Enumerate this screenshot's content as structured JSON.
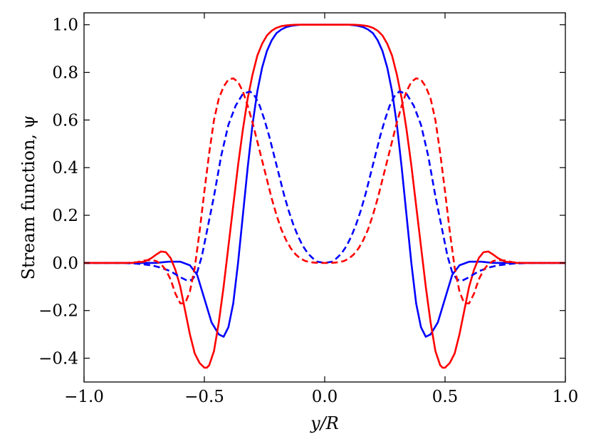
{
  "chart_data": {
    "type": "line",
    "xlabel": "y/R",
    "ylabel": "Stream function, ψ",
    "xlim": [
      -1.0,
      1.0
    ],
    "ylim": [
      -0.5,
      1.05
    ],
    "xticks": [
      "−1.0",
      "−0.5",
      "0.0",
      "0.5",
      "1.0"
    ],
    "xtick_values": [
      -1.0,
      -0.5,
      0.0,
      0.5,
      1.0
    ],
    "yticks": [
      "−0.4",
      "−0.2",
      "0.0",
      "0.2",
      "0.4",
      "0.6",
      "0.8",
      "1.0"
    ],
    "ytick_values": [
      -0.4,
      -0.2,
      0.0,
      0.2,
      0.4,
      0.6,
      0.8,
      1.0
    ],
    "grid": false,
    "series": [
      {
        "color": "#0000ff",
        "style": "solid",
        "x": [
          -1.0,
          -0.8,
          -0.7,
          -0.65,
          -0.6,
          -0.56,
          -0.53,
          -0.5,
          -0.47,
          -0.44,
          -0.42,
          -0.4,
          -0.38,
          -0.36,
          -0.34,
          -0.32,
          -0.3,
          -0.28,
          -0.26,
          -0.24,
          -0.22,
          -0.2,
          -0.18,
          -0.16,
          -0.14,
          -0.12,
          -0.1,
          -0.07,
          0.0,
          0.07,
          0.1,
          0.12,
          0.14,
          0.16,
          0.18,
          0.2,
          0.22,
          0.24,
          0.26,
          0.28,
          0.3,
          0.32,
          0.34,
          0.36,
          0.38,
          0.4,
          0.42,
          0.44,
          0.47,
          0.5,
          0.53,
          0.56,
          0.6,
          0.65,
          0.7,
          0.8,
          1.0
        ],
        "y": [
          0.0,
          0.0,
          0.0,
          0.005,
          0.005,
          -0.01,
          -0.05,
          -0.15,
          -0.25,
          -0.3,
          -0.31,
          -0.27,
          -0.17,
          0.0,
          0.2,
          0.4,
          0.58,
          0.72,
          0.82,
          0.89,
          0.935,
          0.965,
          0.98,
          0.99,
          0.995,
          0.998,
          1.0,
          1.0,
          1.0,
          1.0,
          1.0,
          0.998,
          0.995,
          0.99,
          0.98,
          0.965,
          0.935,
          0.89,
          0.82,
          0.72,
          0.58,
          0.4,
          0.2,
          0.0,
          -0.17,
          -0.27,
          -0.31,
          -0.3,
          -0.25,
          -0.15,
          -0.05,
          -0.01,
          0.005,
          0.005,
          0.0,
          0.0,
          0.0
        ]
      },
      {
        "color": "#ff0000",
        "style": "solid",
        "x": [
          -1.0,
          -0.8,
          -0.75,
          -0.72,
          -0.7,
          -0.68,
          -0.66,
          -0.64,
          -0.62,
          -0.6,
          -0.58,
          -0.56,
          -0.54,
          -0.52,
          -0.5,
          -0.49,
          -0.48,
          -0.46,
          -0.44,
          -0.42,
          -0.4,
          -0.38,
          -0.36,
          -0.34,
          -0.32,
          -0.3,
          -0.28,
          -0.26,
          -0.24,
          -0.22,
          -0.2,
          -0.18,
          -0.16,
          -0.14,
          -0.12,
          -0.1,
          -0.06,
          0.0,
          0.06,
          0.1,
          0.12,
          0.14,
          0.16,
          0.18,
          0.2,
          0.22,
          0.24,
          0.26,
          0.28,
          0.3,
          0.32,
          0.34,
          0.36,
          0.38,
          0.4,
          0.42,
          0.44,
          0.46,
          0.48,
          0.49,
          0.5,
          0.52,
          0.54,
          0.56,
          0.58,
          0.6,
          0.62,
          0.64,
          0.66,
          0.68,
          0.7,
          0.72,
          0.75,
          0.8,
          1.0
        ],
        "y": [
          0.0,
          0.0,
          0.005,
          0.02,
          0.035,
          0.048,
          0.045,
          0.02,
          -0.03,
          -0.1,
          -0.2,
          -0.3,
          -0.38,
          -0.42,
          -0.44,
          -0.44,
          -0.43,
          -0.37,
          -0.25,
          -0.1,
          0.07,
          0.24,
          0.41,
          0.56,
          0.69,
          0.79,
          0.87,
          0.92,
          0.955,
          0.975,
          0.987,
          0.994,
          0.997,
          0.999,
          1.0,
          1.0,
          1.0,
          1.0,
          1.0,
          1.0,
          1.0,
          0.999,
          0.997,
          0.994,
          0.987,
          0.975,
          0.955,
          0.92,
          0.87,
          0.79,
          0.69,
          0.56,
          0.41,
          0.24,
          0.07,
          -0.1,
          -0.25,
          -0.37,
          -0.43,
          -0.44,
          -0.44,
          -0.42,
          -0.38,
          -0.3,
          -0.2,
          -0.1,
          -0.03,
          0.02,
          0.045,
          0.048,
          0.035,
          0.02,
          0.005,
          0.0,
          0.0
        ]
      },
      {
        "color": "#0000ff",
        "style": "dashed",
        "x": [
          -1.0,
          -0.85,
          -0.78,
          -0.72,
          -0.68,
          -0.64,
          -0.6,
          -0.57,
          -0.55,
          -0.53,
          -0.51,
          -0.49,
          -0.46,
          -0.43,
          -0.4,
          -0.37,
          -0.34,
          -0.31,
          -0.29,
          -0.27,
          -0.25,
          -0.23,
          -0.21,
          -0.19,
          -0.17,
          -0.15,
          -0.13,
          -0.11,
          -0.09,
          -0.07,
          -0.05,
          -0.03,
          0.0,
          0.03,
          0.05,
          0.07,
          0.09,
          0.11,
          0.13,
          0.15,
          0.17,
          0.19,
          0.21,
          0.23,
          0.25,
          0.27,
          0.29,
          0.31,
          0.34,
          0.37,
          0.4,
          0.43,
          0.46,
          0.49,
          0.51,
          0.53,
          0.55,
          0.57,
          0.6,
          0.64,
          0.68,
          0.72,
          0.78,
          0.85,
          1.0
        ],
        "y": [
          0.0,
          0.0,
          -0.003,
          -0.01,
          -0.02,
          -0.035,
          -0.06,
          -0.075,
          -0.07,
          -0.04,
          0.03,
          0.13,
          0.28,
          0.45,
          0.58,
          0.66,
          0.71,
          0.72,
          0.7,
          0.66,
          0.6,
          0.53,
          0.45,
          0.37,
          0.29,
          0.22,
          0.16,
          0.11,
          0.07,
          0.04,
          0.02,
          0.005,
          0.0,
          0.005,
          0.02,
          0.04,
          0.07,
          0.11,
          0.16,
          0.22,
          0.29,
          0.37,
          0.45,
          0.53,
          0.6,
          0.66,
          0.7,
          0.72,
          0.71,
          0.66,
          0.58,
          0.45,
          0.28,
          0.13,
          0.03,
          -0.04,
          -0.07,
          -0.075,
          -0.06,
          -0.035,
          -0.02,
          -0.01,
          -0.003,
          0.0,
          0.0
        ]
      },
      {
        "color": "#ff0000",
        "style": "dashed",
        "x": [
          -1.0,
          -0.82,
          -0.78,
          -0.75,
          -0.72,
          -0.7,
          -0.68,
          -0.66,
          -0.64,
          -0.62,
          -0.6,
          -0.58,
          -0.56,
          -0.54,
          -0.52,
          -0.5,
          -0.48,
          -0.46,
          -0.44,
          -0.42,
          -0.4,
          -0.38,
          -0.36,
          -0.34,
          -0.32,
          -0.3,
          -0.28,
          -0.26,
          -0.24,
          -0.22,
          -0.2,
          -0.18,
          -0.16,
          -0.14,
          -0.12,
          -0.1,
          -0.08,
          -0.06,
          -0.04,
          -0.02,
          0.0,
          0.02,
          0.04,
          0.06,
          0.08,
          0.1,
          0.12,
          0.14,
          0.16,
          0.18,
          0.2,
          0.22,
          0.24,
          0.26,
          0.28,
          0.3,
          0.32,
          0.34,
          0.36,
          0.38,
          0.4,
          0.42,
          0.44,
          0.46,
          0.48,
          0.5,
          0.52,
          0.54,
          0.56,
          0.58,
          0.6,
          0.62,
          0.64,
          0.66,
          0.68,
          0.7,
          0.72,
          0.75,
          0.78,
          0.82,
          1.0
        ],
        "y": [
          0.0,
          0.0,
          0.003,
          0.01,
          0.012,
          0.008,
          -0.005,
          -0.03,
          -0.07,
          -0.13,
          -0.17,
          -0.17,
          -0.12,
          -0.02,
          0.13,
          0.3,
          0.46,
          0.6,
          0.69,
          0.74,
          0.77,
          0.775,
          0.76,
          0.72,
          0.66,
          0.59,
          0.51,
          0.43,
          0.35,
          0.27,
          0.2,
          0.14,
          0.095,
          0.06,
          0.035,
          0.018,
          0.008,
          0.003,
          0.001,
          0.0,
          0.0,
          0.0,
          0.001,
          0.003,
          0.008,
          0.018,
          0.035,
          0.06,
          0.095,
          0.14,
          0.2,
          0.27,
          0.35,
          0.43,
          0.51,
          0.59,
          0.66,
          0.72,
          0.76,
          0.775,
          0.77,
          0.74,
          0.69,
          0.6,
          0.46,
          0.3,
          0.13,
          -0.02,
          -0.12,
          -0.17,
          -0.17,
          -0.13,
          -0.07,
          -0.03,
          -0.005,
          0.008,
          0.012,
          0.01,
          0.003,
          0.0,
          0.0
        ]
      }
    ]
  }
}
